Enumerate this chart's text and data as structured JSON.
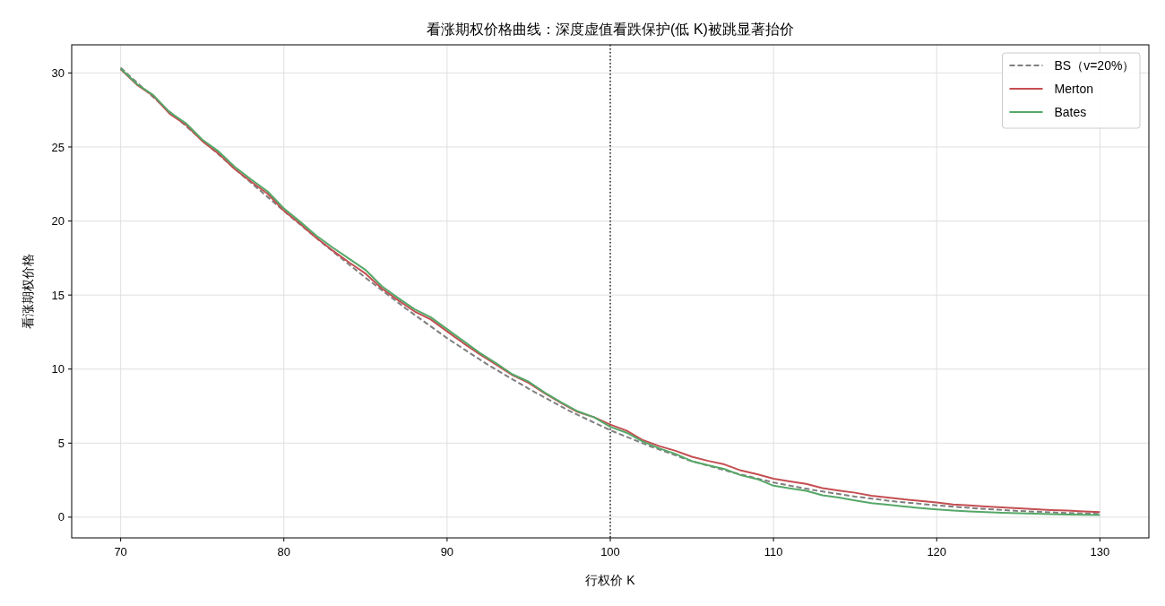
{
  "chart_data": {
    "type": "line",
    "title": "看涨期权价格曲线：深度虚值看跌保护(低 K)被跳显著抬价",
    "xlabel": "行权价 K",
    "ylabel": "看涨期权价格",
    "xlim": [
      67,
      133
    ],
    "ylim": [
      -1.4,
      31.9
    ],
    "xticks": [
      70,
      80,
      90,
      100,
      110,
      120,
      130
    ],
    "yticks": [
      0,
      5,
      10,
      15,
      20,
      25,
      30
    ],
    "grid": true,
    "legend": "top right",
    "ref_lines": [
      {
        "axis": "x",
        "value": 100,
        "color": "#000000",
        "line_style": "dotted"
      }
    ],
    "series": [
      {
        "name": "BS（v=20%）",
        "color": "#808080",
        "line_style": "dashed",
        "x": [
          70,
          72.5,
          75,
          77.5,
          80,
          82.5,
          85,
          87.5,
          90,
          92.5,
          95,
          97.5,
          100,
          102.5,
          105,
          107.5,
          110,
          112.5,
          115,
          117.5,
          120,
          122.5,
          125,
          127.5,
          130
        ],
        "values": [
          30.35,
          27.87,
          25.45,
          23.05,
          20.68,
          18.39,
          16.17,
          14.07,
          12.09,
          10.29,
          8.67,
          7.17,
          5.87,
          4.76,
          3.78,
          3.02,
          2.34,
          1.82,
          1.39,
          1.05,
          0.8,
          0.58,
          0.42,
          0.3,
          0.22
        ]
      },
      {
        "name": "Merton",
        "color": "#c44e52",
        "x": [
          70,
          71,
          72,
          73,
          74,
          75,
          76,
          77,
          78,
          79,
          80,
          81,
          82,
          83,
          84,
          85,
          86,
          87,
          88,
          89,
          90,
          91,
          92,
          93,
          94,
          95,
          96,
          97,
          98,
          99,
          100,
          101,
          102,
          103,
          104,
          105,
          106,
          107,
          108,
          109,
          110,
          111,
          112,
          113,
          114,
          115,
          116,
          117,
          118,
          119,
          120,
          121,
          122,
          123,
          124,
          125,
          126,
          127,
          128,
          129,
          130
        ],
        "values": [
          30.25,
          29.2,
          28.45,
          27.25,
          26.5,
          25.4,
          24.55,
          23.5,
          22.65,
          21.85,
          20.7,
          19.8,
          18.85,
          18.0,
          17.2,
          16.45,
          15.45,
          14.65,
          13.9,
          13.35,
          12.55,
          11.75,
          11.0,
          10.3,
          9.6,
          9.07,
          8.35,
          7.7,
          7.1,
          6.75,
          6.25,
          5.84,
          5.2,
          4.8,
          4.48,
          4.08,
          3.8,
          3.56,
          3.15,
          2.9,
          2.6,
          2.42,
          2.25,
          1.96,
          1.8,
          1.65,
          1.45,
          1.33,
          1.2,
          1.1,
          0.99,
          0.86,
          0.8,
          0.72,
          0.66,
          0.6,
          0.54,
          0.48,
          0.44,
          0.39,
          0.34
        ]
      },
      {
        "name": "Bates",
        "color": "#55a868",
        "x": [
          70,
          71,
          72,
          73,
          74,
          75,
          76,
          77,
          78,
          79,
          80,
          81,
          82,
          83,
          84,
          85,
          86,
          87,
          88,
          89,
          90,
          91,
          92,
          93,
          94,
          95,
          96,
          97,
          98,
          99,
          100,
          101,
          102,
          103,
          104,
          105,
          106,
          107,
          108,
          109,
          110,
          111,
          112,
          113,
          114,
          115,
          116,
          117,
          118,
          119,
          120,
          121,
          122,
          123,
          124,
          125,
          126,
          127,
          128,
          129,
          130
        ],
        "values": [
          30.3,
          29.25,
          28.5,
          27.35,
          26.6,
          25.5,
          24.7,
          23.65,
          22.8,
          22.0,
          20.85,
          19.95,
          19.0,
          18.2,
          17.45,
          16.7,
          15.6,
          14.8,
          14.05,
          13.5,
          12.7,
          11.9,
          11.1,
          10.4,
          9.65,
          9.15,
          8.4,
          7.75,
          7.15,
          6.75,
          6.1,
          5.7,
          5.1,
          4.65,
          4.27,
          3.78,
          3.5,
          3.25,
          2.83,
          2.57,
          2.12,
          1.95,
          1.78,
          1.48,
          1.32,
          1.13,
          0.95,
          0.84,
          0.72,
          0.62,
          0.52,
          0.44,
          0.38,
          0.34,
          0.3,
          0.27,
          0.24,
          0.2,
          0.18,
          0.16,
          0.14
        ]
      }
    ]
  }
}
